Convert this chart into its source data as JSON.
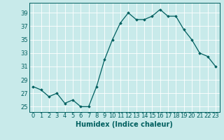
{
  "x": [
    0,
    1,
    2,
    3,
    4,
    5,
    6,
    7,
    8,
    9,
    10,
    11,
    12,
    13,
    14,
    15,
    16,
    17,
    18,
    19,
    20,
    21,
    22,
    23
  ],
  "y": [
    28.0,
    27.5,
    26.5,
    27.0,
    25.5,
    26.0,
    25.0,
    25.0,
    28.0,
    32.0,
    35.0,
    37.5,
    39.0,
    38.0,
    38.0,
    38.5,
    39.5,
    38.5,
    38.5,
    36.5,
    35.0,
    33.0,
    32.5,
    31.0
  ],
  "line_color": "#005f5f",
  "marker": "D",
  "marker_size": 1.8,
  "bg_color": "#c8eaea",
  "grid_color": "#ffffff",
  "xlabel": "Humidex (Indice chaleur)",
  "yticks": [
    25,
    27,
    29,
    31,
    33,
    35,
    37,
    39
  ],
  "xticks": [
    0,
    1,
    2,
    3,
    4,
    5,
    6,
    7,
    8,
    9,
    10,
    11,
    12,
    13,
    14,
    15,
    16,
    17,
    18,
    19,
    20,
    21,
    22,
    23
  ],
  "ylim": [
    24.2,
    40.5
  ],
  "xlim": [
    -0.5,
    23.5
  ],
  "xlabel_fontsize": 7.0,
  "tick_fontsize": 6.0,
  "label_color": "#005f5f",
  "linewidth": 0.9
}
